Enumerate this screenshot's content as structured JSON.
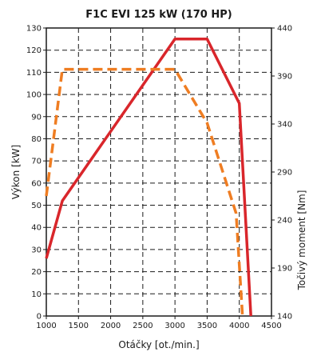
{
  "chart_data": {
    "type": "line",
    "title": "F1C EVI 125 kW (170 HP)",
    "xlabel": "Otáčky [ot./min.]",
    "ylabel": "Výkon [kW]",
    "y2label": "Točivý moment [Nm]",
    "xlim": [
      1000,
      4500
    ],
    "ylim": [
      0,
      130
    ],
    "y2lim": [
      140,
      440
    ],
    "x_ticks": [
      "1000",
      "1500",
      "2000",
      "2500",
      "3000",
      "3500",
      "4000",
      "4500"
    ],
    "y_ticks": [
      "0",
      "10",
      "20",
      "30",
      "40",
      "50",
      "60",
      "70",
      "80",
      "90",
      "100",
      "110",
      "120",
      "130"
    ],
    "y2_ticks": [
      "140",
      "190",
      "240",
      "290",
      "340",
      "390",
      "440"
    ],
    "grid": true,
    "series": [
      {
        "axis": "left",
        "style": "solid",
        "color": "#d9262b",
        "x": [
          1000,
          1250,
          3000,
          3500,
          4000,
          4180
        ],
        "y": [
          26,
          52,
          125,
          125,
          96,
          0
        ]
      },
      {
        "axis": "right",
        "style": "dashed",
        "color": "#ef7d22",
        "x": [
          1000,
          1250,
          3000,
          3500,
          3950,
          4050
        ],
        "y": [
          265,
          397,
          397,
          341,
          247,
          140
        ]
      }
    ]
  }
}
